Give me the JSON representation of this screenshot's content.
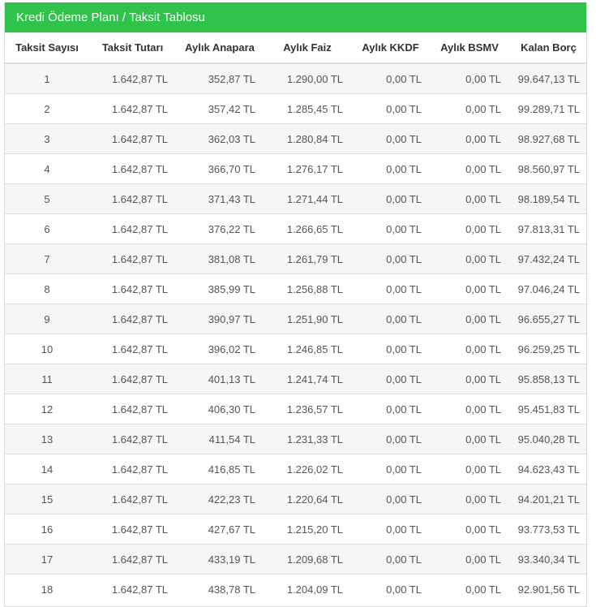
{
  "panel": {
    "title": "Kredi Ödeme Planı / Taksit Tablosu"
  },
  "table": {
    "headers": [
      "Taksit Sayısı",
      "Taksit Tutarı",
      "Aylık Anapara",
      "Aylık Faiz",
      "Aylık KKDF",
      "Aylık BSMV",
      "Kalan Borç"
    ],
    "rows": [
      [
        "1",
        "1.642,87 TL",
        "352,87 TL",
        "1.290,00 TL",
        "0,00 TL",
        "0,00 TL",
        "99.647,13 TL"
      ],
      [
        "2",
        "1.642,87 TL",
        "357,42 TL",
        "1.285,45 TL",
        "0,00 TL",
        "0,00 TL",
        "99.289,71 TL"
      ],
      [
        "3",
        "1.642,87 TL",
        "362,03 TL",
        "1.280,84 TL",
        "0,00 TL",
        "0,00 TL",
        "98.927,68 TL"
      ],
      [
        "4",
        "1.642,87 TL",
        "366,70 TL",
        "1.276,17 TL",
        "0,00 TL",
        "0,00 TL",
        "98.560,97 TL"
      ],
      [
        "5",
        "1.642,87 TL",
        "371,43 TL",
        "1.271,44 TL",
        "0,00 TL",
        "0,00 TL",
        "98.189,54 TL"
      ],
      [
        "6",
        "1.642,87 TL",
        "376,22 TL",
        "1.266,65 TL",
        "0,00 TL",
        "0,00 TL",
        "97.813,31 TL"
      ],
      [
        "7",
        "1.642,87 TL",
        "381,08 TL",
        "1.261,79 TL",
        "0,00 TL",
        "0,00 TL",
        "97.432,24 TL"
      ],
      [
        "8",
        "1.642,87 TL",
        "385,99 TL",
        "1.256,88 TL",
        "0,00 TL",
        "0,00 TL",
        "97.046,24 TL"
      ],
      [
        "9",
        "1.642,87 TL",
        "390,97 TL",
        "1.251,90 TL",
        "0,00 TL",
        "0,00 TL",
        "96.655,27 TL"
      ],
      [
        "10",
        "1.642,87 TL",
        "396,02 TL",
        "1.246,85 TL",
        "0,00 TL",
        "0,00 TL",
        "96.259,25 TL"
      ],
      [
        "11",
        "1.642,87 TL",
        "401,13 TL",
        "1.241,74 TL",
        "0,00 TL",
        "0,00 TL",
        "95.858,13 TL"
      ],
      [
        "12",
        "1.642,87 TL",
        "406,30 TL",
        "1.236,57 TL",
        "0,00 TL",
        "0,00 TL",
        "95.451,83 TL"
      ],
      [
        "13",
        "1.642,87 TL",
        "411,54 TL",
        "1.231,33 TL",
        "0,00 TL",
        "0,00 TL",
        "95.040,28 TL"
      ],
      [
        "14",
        "1.642,87 TL",
        "416,85 TL",
        "1.226,02 TL",
        "0,00 TL",
        "0,00 TL",
        "94.623,43 TL"
      ],
      [
        "15",
        "1.642,87 TL",
        "422,23 TL",
        "1.220,64 TL",
        "0,00 TL",
        "0,00 TL",
        "94.201,21 TL"
      ],
      [
        "16",
        "1.642,87 TL",
        "427,67 TL",
        "1.215,20 TL",
        "0,00 TL",
        "0,00 TL",
        "93.773,53 TL"
      ],
      [
        "17",
        "1.642,87 TL",
        "433,19 TL",
        "1.209,68 TL",
        "0,00 TL",
        "0,00 TL",
        "93.340,34 TL"
      ],
      [
        "18",
        "1.642,87 TL",
        "438,78 TL",
        "1.204,09 TL",
        "0,00 TL",
        "0,00 TL",
        "92.901,56 TL"
      ]
    ]
  },
  "colors": {
    "header_green": "#2fc34c",
    "row_stripe": "#f6f6f6",
    "border": "#dcdcdc"
  }
}
